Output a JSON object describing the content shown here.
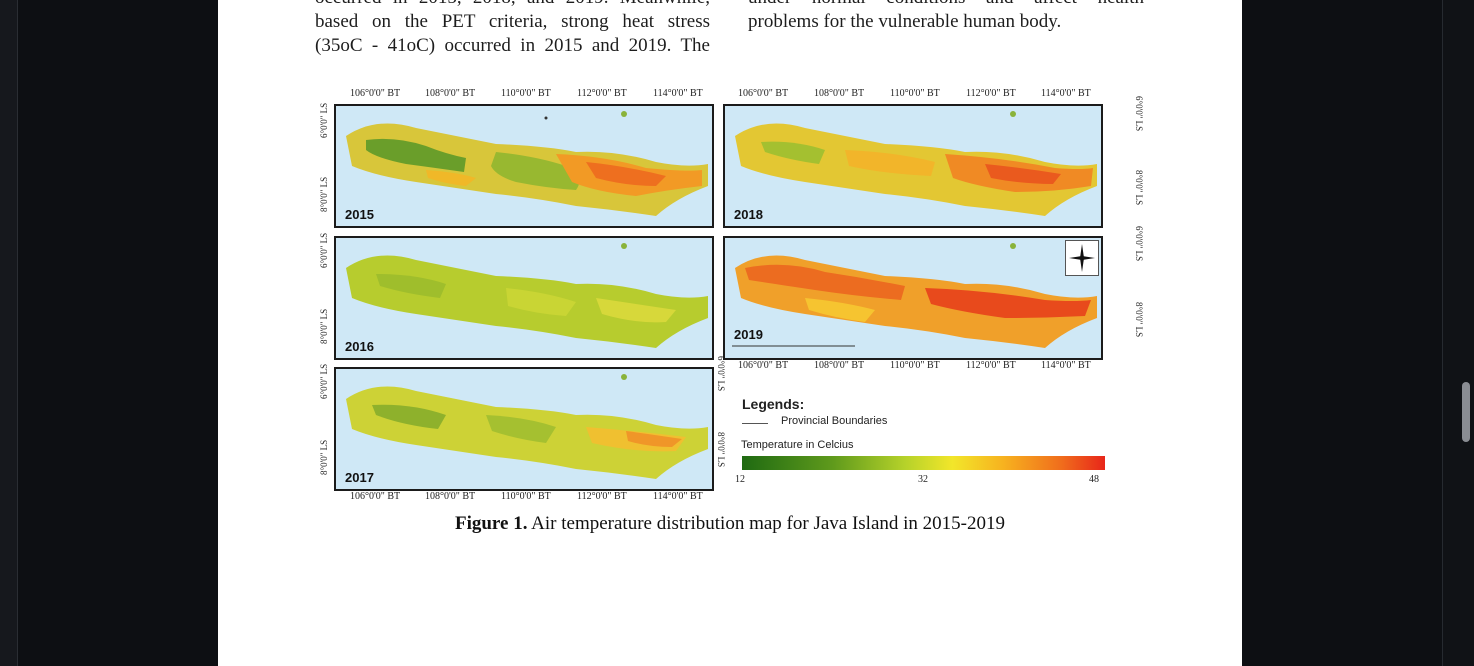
{
  "document": {
    "left_column": [
      "occurred in 2015, 2018, and 2019. Meanwhile,",
      "based on the PET criteria, strong heat stress",
      "(35oC - 41oC) occurred in 2015 and 2019. The"
    ],
    "right_column": [
      "under normal conditions and affect health",
      "problems for the vulnerable human body."
    ]
  },
  "figure": {
    "top_lon_labels_left": [
      "106°0'0\" BT",
      "108°0'0\" BT",
      "110°0'0\" BT",
      "112°0'0\" BT",
      "114°0'0\" BT"
    ],
    "top_lon_labels_right": [
      "106°0'0\" BT",
      "108°0'0\" BT",
      "110°0'0\" BT",
      "112°0'0\" BT",
      "114°0'0\" BT"
    ],
    "mid_lon_labels_right": [
      "106°0'0\" BT",
      "108°0'0\" BT",
      "110°0'0\" BT",
      "112°0'0\" BT",
      "114°0'0\" BT"
    ],
    "bottom_lon_labels_left": [
      "106°0'0\" BT",
      "108°0'0\" BT",
      "110°0'0\" BT",
      "112°0'0\" BT",
      "114°0'0\" BT"
    ],
    "lat_labels": [
      "6°0'0\" LS",
      "8°0'0\" LS"
    ],
    "panels": {
      "p2015": "2015",
      "p2016": "2016",
      "p2017": "2017",
      "p2018": "2018",
      "p2019": "2019"
    },
    "legend": {
      "title": "Legends:",
      "provincial": "Provincial Boundaries",
      "temperature": "Temperature in Celcius",
      "min": "12",
      "mid": "32",
      "max": "48"
    },
    "caption_label": "Figure 1.",
    "caption_text": "Air temperature distribution map for Java Island in 2015-2019"
  },
  "colors": {
    "sea": "#cfe8f6",
    "cool": "#1f6a12",
    "mild": "#b6d22a",
    "warm": "#f7b21f",
    "hot": "#e8261a"
  }
}
